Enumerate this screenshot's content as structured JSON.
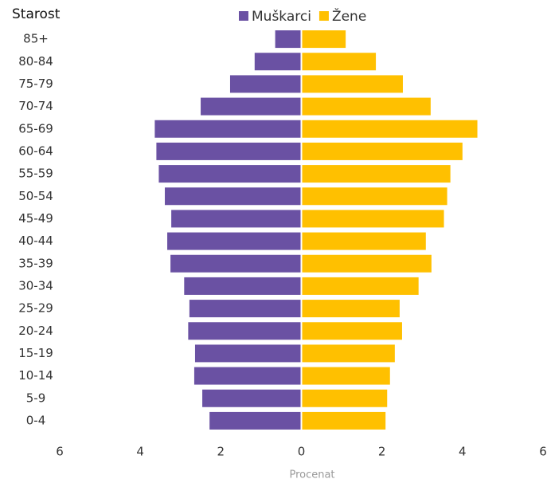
{
  "chart_data": {
    "type": "pyramid",
    "title": "Starost",
    "x_label": "Procenat",
    "categories": [
      "85+",
      "80-84",
      "75-79",
      "70-74",
      "65-69",
      "60-64",
      "55-59",
      "50-54",
      "45-49",
      "40-44",
      "35-39",
      "30-34",
      "25-29",
      "20-24",
      "15-19",
      "10-14",
      "5-9",
      "0-4"
    ],
    "series": [
      {
        "name": "Muškarci",
        "color": "#6a51a3",
        "values": [
          -0.65,
          -1.16,
          -1.77,
          -2.5,
          -3.64,
          -3.6,
          -3.54,
          -3.39,
          -3.23,
          -3.33,
          -3.25,
          -2.91,
          -2.78,
          -2.81,
          -2.64,
          -2.66,
          -2.46,
          -2.28
        ]
      },
      {
        "name": "Žene",
        "color": "#ffc000",
        "values": [
          1.1,
          1.85,
          2.52,
          3.21,
          4.37,
          4.0,
          3.7,
          3.62,
          3.54,
          3.09,
          3.23,
          2.91,
          2.44,
          2.5,
          2.32,
          2.2,
          2.13,
          2.09
        ]
      }
    ],
    "xlim": [
      -6,
      6
    ],
    "xticks": [
      {
        "value": -6,
        "label": "6"
      },
      {
        "value": -4,
        "label": "4"
      },
      {
        "value": -2,
        "label": "2"
      },
      0,
      2,
      4,
      6
    ],
    "legend": "top",
    "grid": false
  }
}
